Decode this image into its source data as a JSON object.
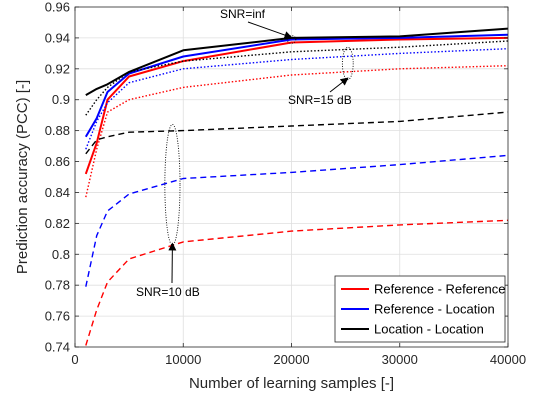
{
  "chart_data": {
    "type": "line",
    "xlabel": "Number of learning samples [-]",
    "ylabel": "Prediction accuracy (PCC) [-]",
    "xlim": [
      0,
      40000
    ],
    "ylim": [
      0.74,
      0.96
    ],
    "xticks": [
      0,
      10000,
      20000,
      30000,
      40000
    ],
    "xtick_labels": [
      "0",
      "10000",
      "20000",
      "30000",
      "40000"
    ],
    "yticks": [
      0.74,
      0.76,
      0.78,
      0.8,
      0.82,
      0.84,
      0.86,
      0.88,
      0.9,
      0.92,
      0.94,
      0.96
    ],
    "ytick_labels": [
      "0.74",
      "0.76",
      "0.78",
      "0.8",
      "0.82",
      "0.84",
      "0.86",
      "0.88",
      "0.9",
      "0.92",
      "0.94",
      "0.96"
    ],
    "grid": true,
    "legend_position": "bottom-right",
    "legend": [
      {
        "label": "Reference - Reference",
        "color": "#ff0000"
      },
      {
        "label": "Reference - Location",
        "color": "#0000ff"
      },
      {
        "label": "Location - Location",
        "color": "#000000"
      }
    ],
    "series": [
      {
        "group": "Reference - Reference",
        "snr": "inf",
        "color": "#ff0000",
        "style": "solid",
        "x": [
          1000,
          2000,
          3000,
          5000,
          10000,
          20000,
          30000,
          40000
        ],
        "y": [
          0.852,
          0.872,
          0.9,
          0.915,
          0.925,
          0.937,
          0.939,
          0.94
        ]
      },
      {
        "group": "Reference - Location",
        "snr": "inf",
        "color": "#0000ff",
        "style": "solid",
        "x": [
          1000,
          2000,
          3000,
          5000,
          10000,
          20000,
          30000,
          40000
        ],
        "y": [
          0.876,
          0.888,
          0.905,
          0.917,
          0.928,
          0.939,
          0.94,
          0.942
        ]
      },
      {
        "group": "Location - Location",
        "snr": "inf",
        "color": "#000000",
        "style": "solid",
        "x": [
          1000,
          2000,
          3000,
          5000,
          10000,
          20000,
          30000,
          40000
        ],
        "y": [
          0.903,
          0.907,
          0.91,
          0.918,
          0.932,
          0.94,
          0.941,
          0.946
        ]
      },
      {
        "group": "Reference - Reference",
        "snr": "15 dB",
        "color": "#ff0000",
        "style": "dotted",
        "x": [
          1000,
          2000,
          3000,
          5000,
          10000,
          20000,
          30000,
          40000
        ],
        "y": [
          0.837,
          0.868,
          0.892,
          0.9,
          0.908,
          0.916,
          0.92,
          0.922
        ]
      },
      {
        "group": "Reference - Location",
        "snr": "15 dB",
        "color": "#0000ff",
        "style": "dotted",
        "x": [
          1000,
          2000,
          3000,
          5000,
          10000,
          20000,
          30000,
          40000
        ],
        "y": [
          0.868,
          0.886,
          0.898,
          0.911,
          0.92,
          0.926,
          0.93,
          0.933
        ]
      },
      {
        "group": "Location - Location",
        "snr": "15 dB",
        "color": "#000000",
        "style": "dotted",
        "x": [
          1000,
          2000,
          3000,
          5000,
          10000,
          20000,
          30000,
          40000
        ],
        "y": [
          0.89,
          0.9,
          0.908,
          0.918,
          0.925,
          0.931,
          0.934,
          0.938
        ]
      },
      {
        "group": "Reference - Reference",
        "snr": "10 dB",
        "color": "#ff0000",
        "style": "dashed",
        "x": [
          1000,
          2000,
          3000,
          5000,
          10000,
          20000,
          30000,
          40000
        ],
        "y": [
          0.741,
          0.764,
          0.782,
          0.797,
          0.808,
          0.815,
          0.819,
          0.822
        ]
      },
      {
        "group": "Reference - Location",
        "snr": "10 dB",
        "color": "#0000ff",
        "style": "dashed",
        "x": [
          1000,
          2000,
          3000,
          5000,
          10000,
          20000,
          30000,
          40000
        ],
        "y": [
          0.779,
          0.812,
          0.828,
          0.839,
          0.849,
          0.853,
          0.858,
          0.864
        ]
      },
      {
        "group": "Location - Location",
        "snr": "10 dB",
        "color": "#000000",
        "style": "dashed",
        "x": [
          1000,
          2000,
          3000,
          5000,
          10000,
          20000,
          30000,
          40000
        ],
        "y": [
          0.865,
          0.874,
          0.876,
          0.879,
          0.88,
          0.883,
          0.886,
          0.892
        ]
      }
    ],
    "annotations": [
      {
        "text": "SNR=inf",
        "arrow_to": [
          20000,
          0.939
        ]
      },
      {
        "text": "SNR=15 dB",
        "arrow_to": [
          25200,
          0.914
        ]
      },
      {
        "text": "SNR=10 dB",
        "arrow_to": [
          9000,
          0.807
        ]
      }
    ],
    "ellipses": [
      {
        "center": [
          20000,
          0.939
        ],
        "rx_data": 400,
        "ry_data": 0.0025
      },
      {
        "center": [
          25200,
          0.9235
        ],
        "rx_data": 500,
        "ry_data": 0.0105
      },
      {
        "center": [
          9000,
          0.845
        ],
        "rx_data": 700,
        "ry_data": 0.039
      }
    ]
  }
}
